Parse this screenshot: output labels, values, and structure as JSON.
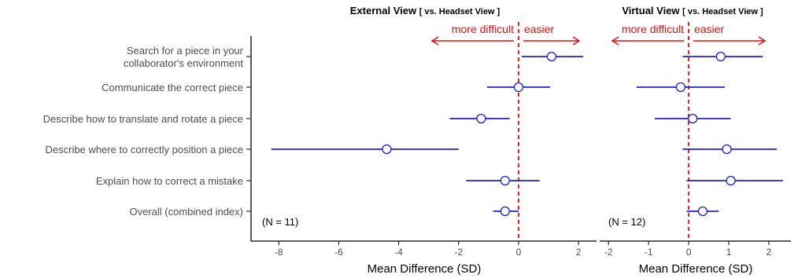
{
  "chart_data": [
    {
      "type": "scatter",
      "subtype": "forest-plot",
      "title_main": "External View",
      "title_suffix": "[ vs. Headset View ]",
      "xlabel": "Mean Difference (SD)",
      "xlim": [
        -8.9,
        2.6
      ],
      "xticks": [
        -8,
        -6,
        -4,
        -2,
        0,
        2
      ],
      "reference_line": 0,
      "arrow_left_label": "more difficult",
      "arrow_right_label": "easier",
      "n_label": "(N = 11)",
      "categories": [
        "Search for a piece in your collaborator's environment",
        "Communicate the correct piece",
        "Describe how to translate and rotate a piece",
        "Describe where to correctly position a piece",
        "Explain how to correct a mistake",
        "Overall (combined index)"
      ],
      "points": [
        {
          "mean": 1.1,
          "lower": 0.1,
          "upper": 2.15
        },
        {
          "mean": 0.0,
          "lower": -1.05,
          "upper": 1.05
        },
        {
          "mean": -1.25,
          "lower": -2.3,
          "upper": -0.3
        },
        {
          "mean": -4.4,
          "lower": -8.25,
          "upper": -2.0
        },
        {
          "mean": -0.45,
          "lower": -1.75,
          "upper": 0.7
        },
        {
          "mean": -0.45,
          "lower": -0.85,
          "upper": 0.0
        }
      ]
    },
    {
      "type": "scatter",
      "subtype": "forest-plot",
      "title_main": "Virtual View",
      "title_suffix": "[ vs. Headset View ]",
      "xlabel": "Mean Difference (SD)",
      "xlim": [
        -2.2,
        2.55
      ],
      "xticks": [
        -2,
        -1,
        0,
        1,
        2
      ],
      "reference_line": 0,
      "arrow_left_label": "more difficult",
      "arrow_right_label": "easier",
      "n_label": "(N = 12)",
      "points": [
        {
          "mean": 0.8,
          "lower": -0.15,
          "upper": 1.85
        },
        {
          "mean": -0.2,
          "lower": -1.3,
          "upper": 0.9
        },
        {
          "mean": 0.1,
          "lower": -0.85,
          "upper": 1.05
        },
        {
          "mean": 0.95,
          "lower": -0.15,
          "upper": 2.2
        },
        {
          "mean": 1.05,
          "lower": -0.05,
          "upper": 2.35
        },
        {
          "mean": 0.35,
          "lower": -0.05,
          "upper": 0.75
        }
      ]
    }
  ],
  "colors": {
    "ci": "#1f1fd6",
    "point_stroke": "#1f1fd6",
    "point_fill": "#ffffff",
    "reference": "#e01010",
    "arrow": "#e01010",
    "axis": "#000000",
    "category_text": "#4d4d4d",
    "tick_text": "#4d4d4d"
  }
}
